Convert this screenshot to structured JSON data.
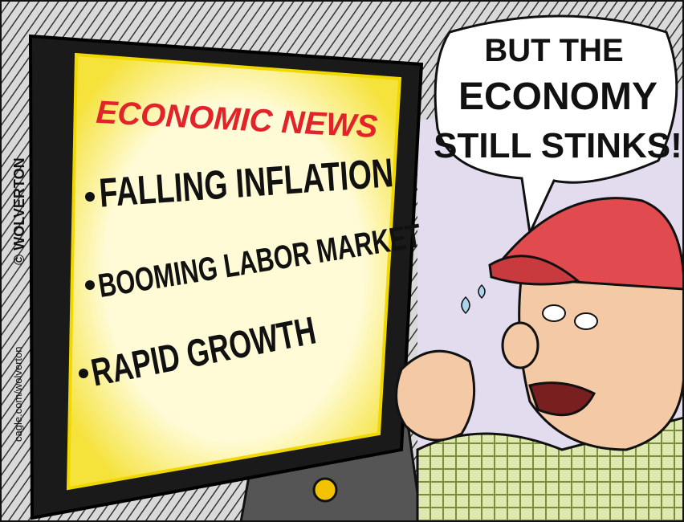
{
  "tv_screen": {
    "heading": "ECONOMIC NEWS",
    "items": [
      "FALLING INFLATION",
      "BOOMING LABOR MARKET",
      "RAPID GROWTH"
    ]
  },
  "speech_bubble": {
    "lines": [
      "BUT THE",
      "ECONOMY",
      "STILL STINKS!"
    ]
  },
  "signature": "© WOLVERTON",
  "credit": "cagle.com/wolverton"
}
